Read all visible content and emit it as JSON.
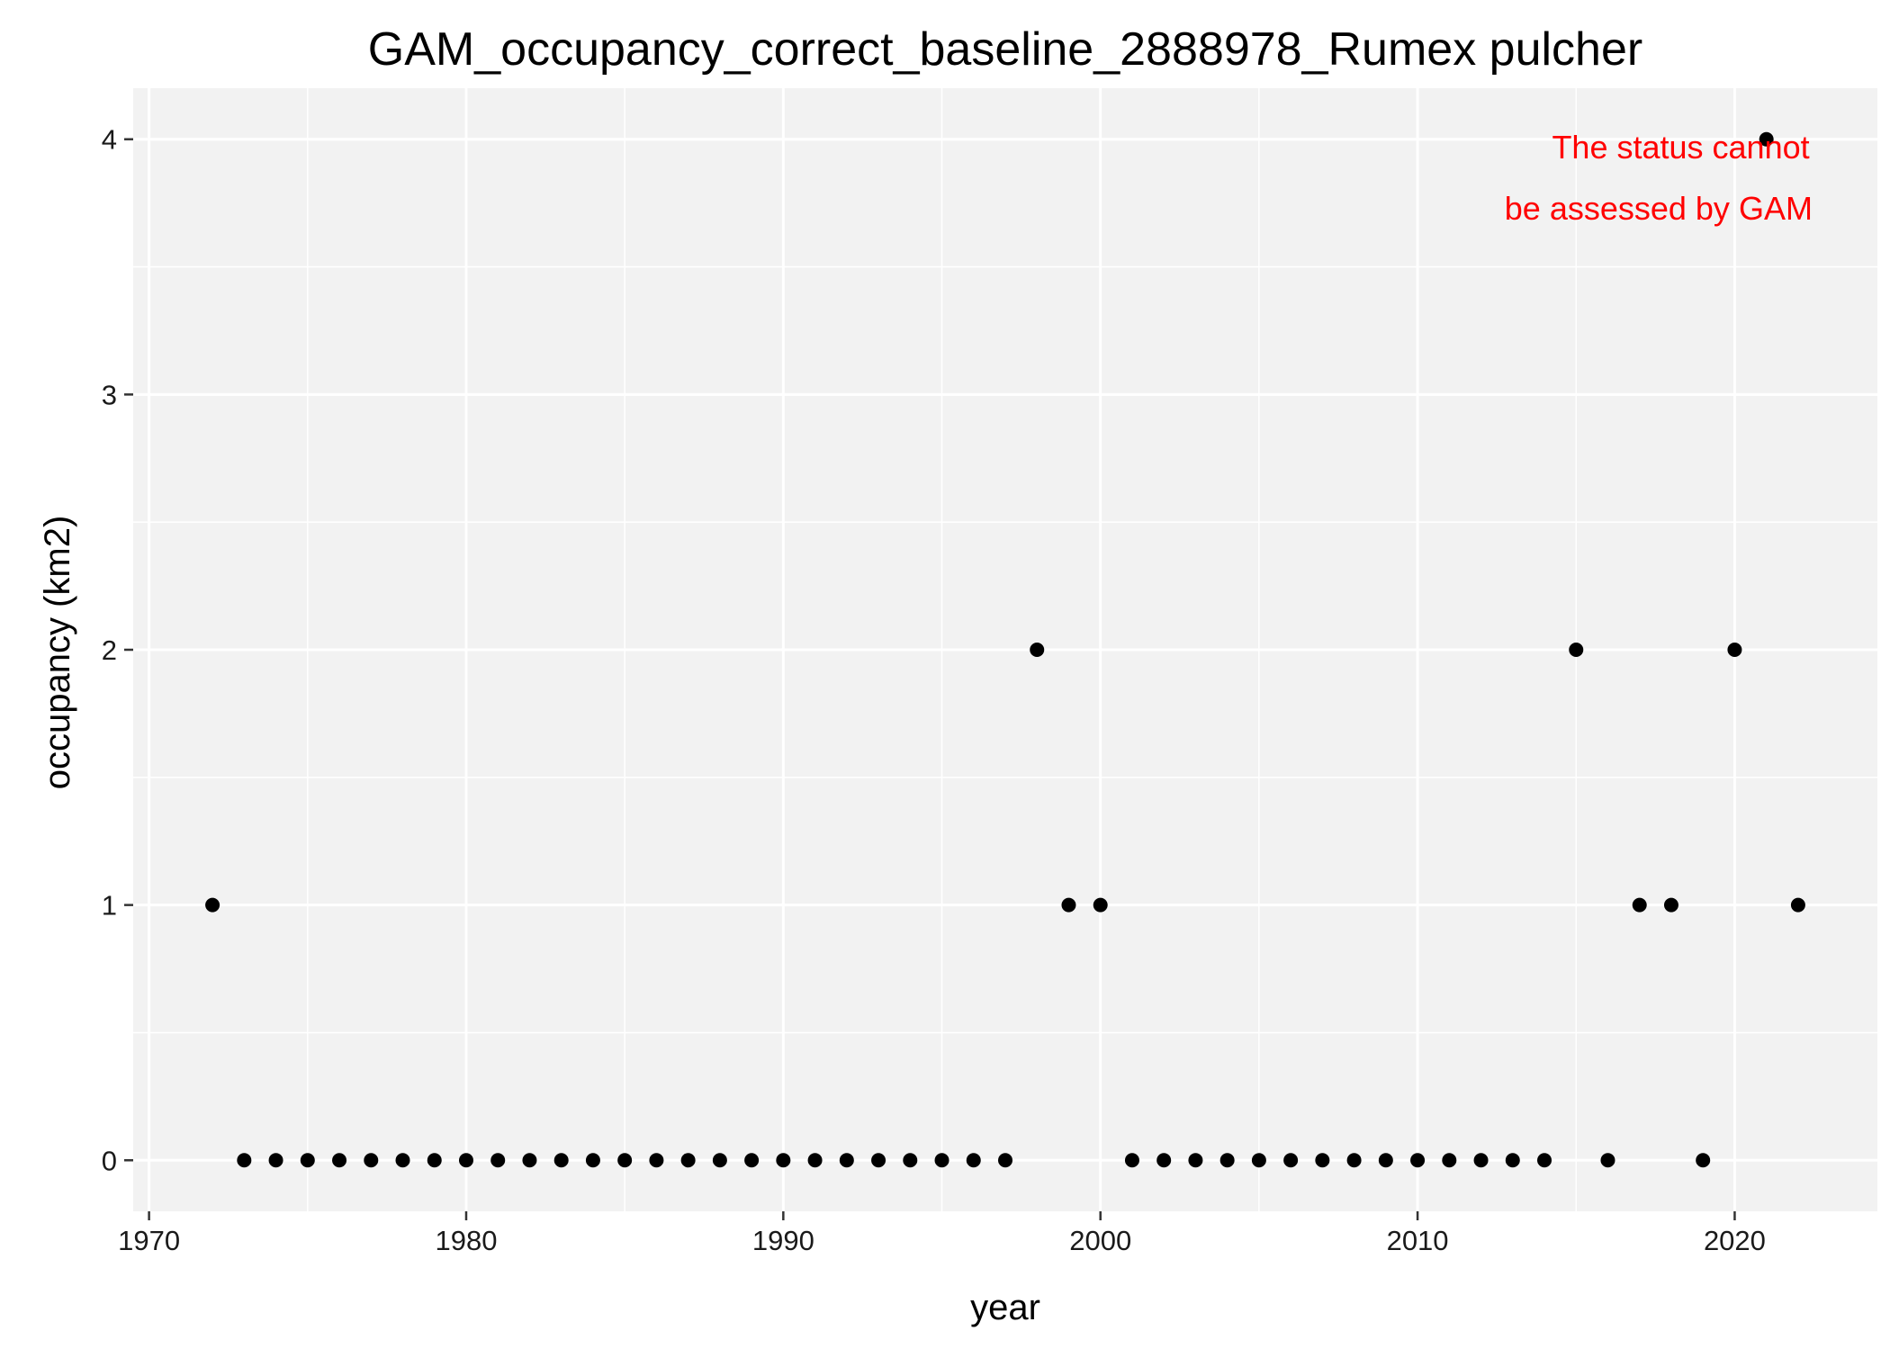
{
  "chart_data": {
    "type": "scatter",
    "title": "GAM_occupancy_correct_baseline_2888978_Rumex pulcher",
    "xlabel": "year",
    "ylabel": "occupancy (km2)",
    "xlim": [
      1969.5,
      2024.5
    ],
    "ylim": [
      -0.2,
      4.2
    ],
    "x_ticks": [
      1970,
      1980,
      1990,
      2000,
      2010,
      2020
    ],
    "x_tick_labels": [
      "1970",
      "1980",
      "1990",
      "2000",
      "2010",
      "2020"
    ],
    "y_ticks": [
      0,
      1,
      2,
      3,
      4
    ],
    "y_tick_labels": [
      "0",
      "1",
      "2",
      "3",
      "4"
    ],
    "grid": true,
    "panel_color": "#f2f2f2",
    "point_color": "#000000",
    "series": [
      {
        "x": [
          1972,
          1973,
          1974,
          1975,
          1976,
          1977,
          1978,
          1979,
          1980,
          1981,
          1982,
          1983,
          1984,
          1985,
          1986,
          1987,
          1988,
          1989,
          1990,
          1991,
          1992,
          1993,
          1994,
          1995,
          1996,
          1997,
          1998,
          1999,
          2000,
          2001,
          2002,
          2003,
          2004,
          2005,
          2006,
          2007,
          2008,
          2009,
          2010,
          2011,
          2012,
          2013,
          2014,
          2015,
          2016,
          2017,
          2018,
          2019,
          2020,
          2021,
          2022
        ],
        "y": [
          1,
          0,
          0,
          0,
          0,
          0,
          0,
          0,
          0,
          0,
          0,
          0,
          0,
          0,
          0,
          0,
          0,
          0,
          0,
          0,
          0,
          0,
          0,
          0,
          0,
          0,
          2,
          1,
          1,
          0,
          0,
          0,
          0,
          0,
          0,
          0,
          0,
          0,
          0,
          0,
          0,
          0,
          0,
          2,
          0,
          1,
          1,
          0,
          2,
          4,
          1
        ]
      }
    ],
    "annotation": {
      "lines": [
        "The status cannot",
        "be assessed by GAM"
      ],
      "color": "#ff0000",
      "position": "top-right"
    }
  }
}
